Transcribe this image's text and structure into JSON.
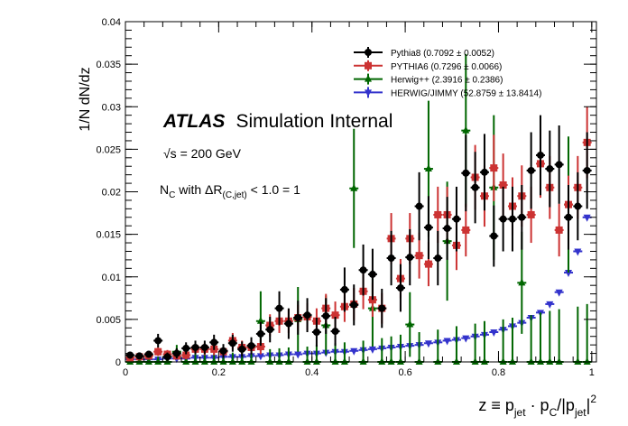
{
  "chart_data": {
    "type": "scatter",
    "title": "",
    "xlabel_main": "z ≡ p",
    "xlabel_sub1": "jet",
    "xlabel_mid": " · p",
    "xlabel_sub2": "C",
    "xlabel_mid2": "/|p",
    "xlabel_sub3": "jet",
    "xlabel_end": "|",
    "xlabel_sup": "2",
    "ylabel": "1/N dN/dz",
    "xlim": [
      0,
      1.01
    ],
    "ylim": [
      0,
      0.04
    ],
    "xticks": [
      "0",
      "0.2",
      "0.4",
      "0.6",
      "0.8",
      "1"
    ],
    "yticks": [
      "0",
      "0.005",
      "0.01",
      "0.015",
      "0.02",
      "0.025",
      "0.03",
      "0.035",
      "0.04"
    ],
    "annotations": {
      "atlas": "ATLAS",
      "internal": "Simulation Internal",
      "energy": "√s = 200 GeV",
      "selection_pre": "N",
      "selection_sub1": "C",
      "selection_mid": " with ΔR",
      "selection_sub2": "(C,jet)",
      "selection_post": " < 1.0 = 1"
    },
    "legend_position": "top-right",
    "series": [
      {
        "name": "Pythia8 (0.7092 ± 0.0052)",
        "color": "#000000",
        "marker": "circle",
        "points": [
          [
            0.01,
            0.0008,
            0.0004
          ],
          [
            0.03,
            0.0007,
            0.0004
          ],
          [
            0.05,
            0.0009,
            0.0004
          ],
          [
            0.07,
            0.0025,
            0.0008
          ],
          [
            0.09,
            0.0006,
            0.0005
          ],
          [
            0.11,
            0.001,
            0.0006
          ],
          [
            0.13,
            0.0016,
            0.0007
          ],
          [
            0.15,
            0.0017,
            0.0008
          ],
          [
            0.17,
            0.0017,
            0.0008
          ],
          [
            0.19,
            0.0023,
            0.0009
          ],
          [
            0.21,
            0.0013,
            0.0008
          ],
          [
            0.23,
            0.0022,
            0.001
          ],
          [
            0.25,
            0.0015,
            0.0009
          ],
          [
            0.27,
            0.0019,
            0.001
          ],
          [
            0.29,
            0.0033,
            0.0014
          ],
          [
            0.31,
            0.0038,
            0.0015
          ],
          [
            0.33,
            0.0063,
            0.002
          ],
          [
            0.35,
            0.0045,
            0.0018
          ],
          [
            0.37,
            0.0052,
            0.002
          ],
          [
            0.39,
            0.0055,
            0.002
          ],
          [
            0.41,
            0.0035,
            0.0017
          ],
          [
            0.43,
            0.0054,
            0.0021
          ],
          [
            0.45,
            0.0036,
            0.0017
          ],
          [
            0.47,
            0.0085,
            0.0026
          ],
          [
            0.49,
            0.0067,
            0.0024
          ],
          [
            0.51,
            0.0108,
            0.003
          ],
          [
            0.53,
            0.0103,
            0.003
          ],
          [
            0.55,
            0.0063,
            0.0023
          ],
          [
            0.57,
            0.0122,
            0.0032
          ],
          [
            0.59,
            0.0087,
            0.0028
          ],
          [
            0.61,
            0.0123,
            0.0033
          ],
          [
            0.63,
            0.0183,
            0.004
          ],
          [
            0.65,
            0.0158,
            0.0037
          ],
          [
            0.67,
            0.0122,
            0.0032
          ],
          [
            0.69,
            0.0157,
            0.0037
          ],
          [
            0.71,
            0.0168,
            0.0038
          ],
          [
            0.73,
            0.0222,
            0.0045
          ],
          [
            0.75,
            0.0205,
            0.0042
          ],
          [
            0.77,
            0.0223,
            0.0045
          ],
          [
            0.79,
            0.0148,
            0.0036
          ],
          [
            0.81,
            0.0168,
            0.0038
          ],
          [
            0.83,
            0.0168,
            0.0038
          ],
          [
            0.85,
            0.017,
            0.0038
          ],
          [
            0.87,
            0.0225,
            0.0045
          ],
          [
            0.89,
            0.0243,
            0.0047
          ],
          [
            0.91,
            0.0227,
            0.0045
          ],
          [
            0.93,
            0.0232,
            0.0046
          ],
          [
            0.95,
            0.017,
            0.0038
          ],
          [
            0.97,
            0.0183,
            0.004
          ],
          [
            0.99,
            0.0225,
            0.0045
          ]
        ]
      },
      {
        "name": "PYTHIA6 (0.7296 ± 0.0066)",
        "color": "#cc3333",
        "marker": "square",
        "points": [
          [
            0.01,
            0.0005,
            0.0003
          ],
          [
            0.03,
            0.0006,
            0.0003
          ],
          [
            0.05,
            0.0007,
            0.0004
          ],
          [
            0.07,
            0.0012,
            0.0005
          ],
          [
            0.09,
            0.0009,
            0.0005
          ],
          [
            0.11,
            0.0007,
            0.0004
          ],
          [
            0.13,
            0.0008,
            0.0005
          ],
          [
            0.15,
            0.0015,
            0.0006
          ],
          [
            0.17,
            0.0015,
            0.0007
          ],
          [
            0.19,
            0.0015,
            0.0007
          ],
          [
            0.21,
            0.0012,
            0.0006
          ],
          [
            0.23,
            0.0025,
            0.0009
          ],
          [
            0.25,
            0.0017,
            0.0008
          ],
          [
            0.27,
            0.0017,
            0.0008
          ],
          [
            0.29,
            0.0018,
            0.0009
          ],
          [
            0.31,
            0.0043,
            0.0013
          ],
          [
            0.33,
            0.0048,
            0.0014
          ],
          [
            0.35,
            0.0048,
            0.0014
          ],
          [
            0.37,
            0.0052,
            0.0015
          ],
          [
            0.39,
            0.0053,
            0.0016
          ],
          [
            0.41,
            0.0048,
            0.0015
          ],
          [
            0.43,
            0.0063,
            0.0017
          ],
          [
            0.45,
            0.0055,
            0.0016
          ],
          [
            0.47,
            0.0065,
            0.0018
          ],
          [
            0.49,
            0.0068,
            0.0019
          ],
          [
            0.51,
            0.0083,
            0.0021
          ],
          [
            0.53,
            0.0073,
            0.002
          ],
          [
            0.55,
            0.0063,
            0.0018
          ],
          [
            0.57,
            0.0145,
            0.003
          ],
          [
            0.59,
            0.0098,
            0.0023
          ],
          [
            0.61,
            0.0145,
            0.003
          ],
          [
            0.63,
            0.0125,
            0.0027
          ],
          [
            0.65,
            0.0115,
            0.0026
          ],
          [
            0.67,
            0.0173,
            0.0033
          ],
          [
            0.69,
            0.0173,
            0.0033
          ],
          [
            0.71,
            0.0137,
            0.0029
          ],
          [
            0.73,
            0.0155,
            0.0031
          ],
          [
            0.75,
            0.0217,
            0.0038
          ],
          [
            0.77,
            0.0195,
            0.0036
          ],
          [
            0.79,
            0.0228,
            0.0039
          ],
          [
            0.81,
            0.0208,
            0.0037
          ],
          [
            0.83,
            0.0183,
            0.0034
          ],
          [
            0.85,
            0.0195,
            0.0036
          ],
          [
            0.87,
            0.0173,
            0.0033
          ],
          [
            0.89,
            0.0233,
            0.004
          ],
          [
            0.91,
            0.0205,
            0.0037
          ],
          [
            0.93,
            0.0155,
            0.0031
          ],
          [
            0.95,
            0.0185,
            0.0034
          ],
          [
            0.97,
            0.0205,
            0.0037
          ],
          [
            0.99,
            0.0258,
            0.0042
          ]
        ]
      },
      {
        "name": "Herwig++ (2.3916 ± 0.2386)",
        "color": "#006600",
        "marker": "triangle-up",
        "points": [
          [
            0.01,
            0.0,
            0.0005
          ],
          [
            0.03,
            0.0,
            0.0005
          ],
          [
            0.05,
            0.0,
            0.0005
          ],
          [
            0.07,
            0.0,
            0.0006
          ],
          [
            0.09,
            0.0,
            0.0006
          ],
          [
            0.11,
            0.0012,
            0.0008
          ],
          [
            0.13,
            0.0,
            0.0008
          ],
          [
            0.15,
            0.0,
            0.0009
          ],
          [
            0.17,
            0.0,
            0.0009
          ],
          [
            0.19,
            0.0,
            0.001
          ],
          [
            0.21,
            0.0,
            0.001
          ],
          [
            0.23,
            0.0,
            0.0011
          ],
          [
            0.25,
            0.0,
            0.0012
          ],
          [
            0.27,
            0.0,
            0.0013
          ],
          [
            0.29,
            0.0048,
            0.0035
          ],
          [
            0.31,
            0.0,
            0.0015
          ],
          [
            0.33,
            0.0,
            0.0016
          ],
          [
            0.35,
            0.0,
            0.0017
          ],
          [
            0.37,
            0.005,
            0.0038
          ],
          [
            0.39,
            0.0,
            0.0018
          ],
          [
            0.41,
            0.0,
            0.002
          ],
          [
            0.43,
            0.0043,
            0.0035
          ],
          [
            0.45,
            0.0,
            0.0022
          ],
          [
            0.47,
            0.0,
            0.0023
          ],
          [
            0.49,
            0.0204,
            0.007
          ],
          [
            0.51,
            0.0,
            0.0025
          ],
          [
            0.53,
            0.0063,
            0.0045
          ],
          [
            0.55,
            0.0,
            0.0028
          ],
          [
            0.57,
            0.0,
            0.003
          ],
          [
            0.59,
            0.0,
            0.0032
          ],
          [
            0.61,
            0.0044,
            0.0038
          ],
          [
            0.63,
            0.0,
            0.0035
          ],
          [
            0.65,
            0.0227,
            0.008
          ],
          [
            0.67,
            0.0,
            0.0038
          ],
          [
            0.69,
            0.0142,
            0.007
          ],
          [
            0.71,
            0.0,
            0.0042
          ],
          [
            0.73,
            0.0272,
            0.009
          ],
          [
            0.75,
            0.0,
            0.0045
          ],
          [
            0.77,
            0.0,
            0.0048
          ],
          [
            0.79,
            0.0205,
            0.0085
          ],
          [
            0.81,
            0.0,
            0.005
          ],
          [
            0.83,
            0.0,
            0.0052
          ],
          [
            0.85,
            0.0093,
            0.006
          ],
          [
            0.87,
            0.0,
            0.0055
          ],
          [
            0.89,
            0.0,
            0.0058
          ],
          [
            0.91,
            0.0,
            0.006
          ],
          [
            0.93,
            0.0,
            0.0062
          ],
          [
            0.95,
            0.0185,
            0.008
          ],
          [
            0.97,
            0.0,
            0.0065
          ],
          [
            0.99,
            0.0,
            0.0068
          ]
        ]
      },
      {
        "name": "HERWIG/JIMMY (52.8759 ± 13.8414)",
        "color": "#3333cc",
        "marker": "triangle-down",
        "points": [
          [
            0.01,
            0.0003,
            0
          ],
          [
            0.03,
            0.0003,
            0
          ],
          [
            0.05,
            0.0003,
            0
          ],
          [
            0.07,
            0.0003,
            0
          ],
          [
            0.09,
            0.0004,
            0
          ],
          [
            0.11,
            0.0004,
            0
          ],
          [
            0.13,
            0.0004,
            0
          ],
          [
            0.15,
            0.0005,
            0
          ],
          [
            0.17,
            0.0005,
            0
          ],
          [
            0.19,
            0.0005,
            0
          ],
          [
            0.21,
            0.0006,
            0
          ],
          [
            0.23,
            0.0006,
            0
          ],
          [
            0.25,
            0.0006,
            0
          ],
          [
            0.27,
            0.0007,
            0
          ],
          [
            0.29,
            0.0007,
            0
          ],
          [
            0.31,
            0.0008,
            0
          ],
          [
            0.33,
            0.0008,
            0
          ],
          [
            0.35,
            0.0009,
            0
          ],
          [
            0.37,
            0.0009,
            0
          ],
          [
            0.39,
            0.001,
            0
          ],
          [
            0.41,
            0.001,
            0
          ],
          [
            0.43,
            0.0011,
            0
          ],
          [
            0.45,
            0.0012,
            0
          ],
          [
            0.47,
            0.0012,
            0
          ],
          [
            0.49,
            0.0013,
            0
          ],
          [
            0.51,
            0.0014,
            0
          ],
          [
            0.53,
            0.0015,
            0
          ],
          [
            0.55,
            0.0016,
            0
          ],
          [
            0.57,
            0.0017,
            0
          ],
          [
            0.59,
            0.0018,
            0
          ],
          [
            0.61,
            0.0019,
            0
          ],
          [
            0.63,
            0.002,
            0
          ],
          [
            0.65,
            0.0022,
            0
          ],
          [
            0.67,
            0.0023,
            0
          ],
          [
            0.69,
            0.0025,
            0
          ],
          [
            0.71,
            0.0026,
            0
          ],
          [
            0.73,
            0.0028,
            0
          ],
          [
            0.75,
            0.003,
            0
          ],
          [
            0.77,
            0.0032,
            0
          ],
          [
            0.79,
            0.0035,
            0
          ],
          [
            0.81,
            0.0038,
            0
          ],
          [
            0.83,
            0.0042,
            0
          ],
          [
            0.85,
            0.0046,
            0
          ],
          [
            0.87,
            0.0052,
            0
          ],
          [
            0.89,
            0.0058,
            0
          ],
          [
            0.91,
            0.0068,
            0
          ],
          [
            0.93,
            0.0082,
            0
          ],
          [
            0.95,
            0.0105,
            0
          ],
          [
            0.97,
            0.013,
            0
          ],
          [
            0.99,
            0.017,
            0
          ]
        ]
      }
    ]
  }
}
